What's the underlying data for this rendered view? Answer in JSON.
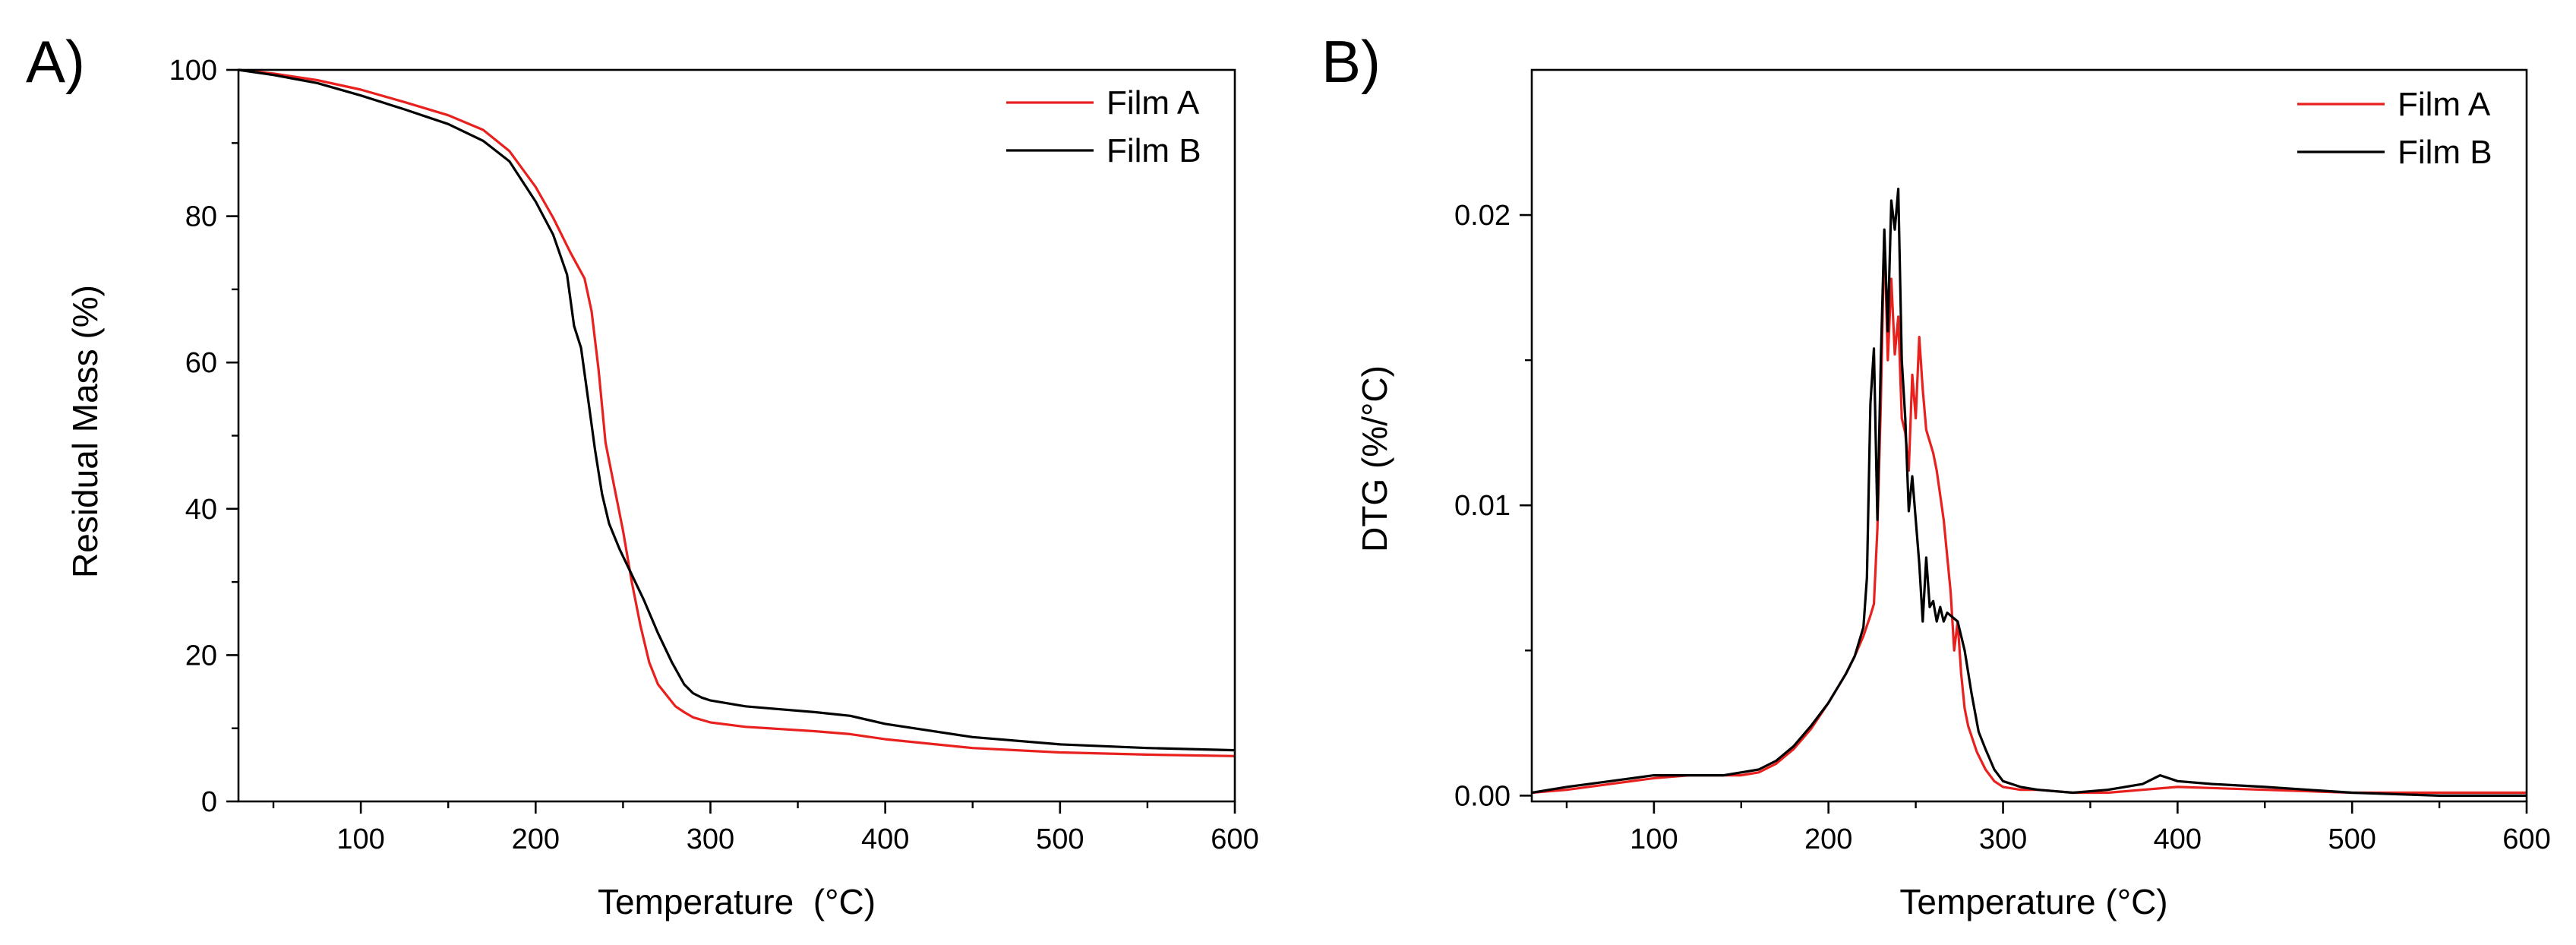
{
  "chart_data": [
    {
      "type": "line",
      "panel_label": "A)",
      "xlabel": "Temperature  (°C)",
      "ylabel": "Residual Mass (%)",
      "xlim": [
        30,
        600
      ],
      "ylim": [
        0,
        100
      ],
      "xticks": [
        100,
        200,
        300,
        400,
        500,
        600
      ],
      "xtick_labels": [
        "100",
        "200",
        "300",
        "400",
        "500",
        "600"
      ],
      "yticks": [
        0,
        20,
        40,
        60,
        80,
        100
      ],
      "ytick_labels": [
        "0",
        "20",
        "40",
        "60",
        "80",
        "100"
      ],
      "legend_position": "top-right",
      "series": [
        {
          "name": "Film A",
          "color": "#e8201e",
          "x": [
            30,
            50,
            75,
            100,
            125,
            150,
            170,
            185,
            200,
            210,
            220,
            228,
            232,
            236,
            240,
            245,
            250,
            255,
            260,
            265,
            270,
            275,
            280,
            285,
            290,
            300,
            320,
            340,
            360,
            380,
            400,
            450,
            500,
            550,
            600
          ],
          "y": [
            100,
            99.5,
            98.6,
            97.3,
            95.6,
            93.8,
            91.8,
            88.9,
            84.0,
            79.8,
            75.0,
            71.5,
            67.0,
            59.0,
            49.0,
            43.0,
            37.0,
            30.0,
            24.0,
            19.0,
            16.0,
            14.5,
            13.0,
            12.2,
            11.5,
            10.8,
            10.2,
            9.9,
            9.6,
            9.2,
            8.5,
            7.3,
            6.7,
            6.4,
            6.2
          ]
        },
        {
          "name": "Film B",
          "color": "#000000",
          "x": [
            30,
            50,
            75,
            100,
            125,
            150,
            170,
            185,
            200,
            210,
            218,
            222,
            226,
            230,
            234,
            238,
            242,
            248,
            255,
            262,
            270,
            278,
            285,
            290,
            295,
            300,
            320,
            340,
            360,
            380,
            400,
            450,
            500,
            550,
            600
          ],
          "y": [
            100,
            99.3,
            98.2,
            96.5,
            94.6,
            92.6,
            90.3,
            87.5,
            82.0,
            77.5,
            72.0,
            65.0,
            62.0,
            55.0,
            48.0,
            42.0,
            38.0,
            34.5,
            31.0,
            27.5,
            23.0,
            19.0,
            16.0,
            14.8,
            14.2,
            13.8,
            13.0,
            12.6,
            12.2,
            11.7,
            10.6,
            8.8,
            7.8,
            7.3,
            7.0
          ]
        }
      ]
    },
    {
      "type": "line",
      "panel_label": "B)",
      "xlabel": "Temperature (°C)",
      "ylabel": "DTG (%/°C)",
      "xlim": [
        30,
        600
      ],
      "ylim": [
        -0.0002,
        0.025
      ],
      "xticks": [
        100,
        200,
        300,
        400,
        500,
        600
      ],
      "xtick_labels": [
        "100",
        "200",
        "300",
        "400",
        "500",
        "600"
      ],
      "yticks": [
        0,
        0.01,
        0.02
      ],
      "ytick_labels": [
        "0.00",
        "0.01",
        "0.02"
      ],
      "legend_position": "top-right",
      "series": [
        {
          "name": "Film A",
          "color": "#e8201e",
          "x": [
            30,
            50,
            75,
            100,
            120,
            140,
            150,
            160,
            170,
            180,
            190,
            200,
            210,
            215,
            220,
            224,
            226,
            228,
            230,
            232,
            234,
            236,
            238,
            240,
            242,
            244,
            246,
            248,
            250,
            252,
            254,
            256,
            258,
            260,
            262,
            266,
            270,
            272,
            274,
            276,
            278,
            280,
            285,
            290,
            295,
            300,
            310,
            320,
            340,
            360,
            380,
            400,
            450,
            500,
            550,
            600
          ],
          "y": [
            0.0001,
            0.0002,
            0.0004,
            0.0006,
            0.0007,
            0.0007,
            0.0007,
            0.0008,
            0.0011,
            0.0016,
            0.0023,
            0.0032,
            0.0042,
            0.0048,
            0.0055,
            0.0062,
            0.0066,
            0.0092,
            0.0135,
            0.0194,
            0.015,
            0.0178,
            0.0152,
            0.0165,
            0.013,
            0.0125,
            0.0112,
            0.0145,
            0.013,
            0.0158,
            0.014,
            0.0126,
            0.0122,
            0.0118,
            0.0112,
            0.0095,
            0.007,
            0.005,
            0.006,
            0.0042,
            0.003,
            0.0024,
            0.0015,
            0.0009,
            0.0005,
            0.0003,
            0.0002,
            0.0002,
            0.0001,
            0.0001,
            0.0002,
            0.0003,
            0.0002,
            0.0001,
            0.0001,
            0.0001
          ]
        },
        {
          "name": "Film B",
          "color": "#000000",
          "x": [
            30,
            50,
            75,
            100,
            120,
            140,
            150,
            160,
            170,
            180,
            190,
            200,
            210,
            215,
            220,
            222,
            224,
            226,
            228,
            230,
            232,
            234,
            236,
            238,
            240,
            242,
            244,
            246,
            248,
            250,
            252,
            254,
            256,
            258,
            260,
            262,
            264,
            266,
            268,
            270,
            274,
            278,
            282,
            286,
            290,
            295,
            300,
            310,
            320,
            340,
            360,
            380,
            390,
            400,
            420,
            450,
            500,
            550,
            600
          ],
          "y": [
            0.0001,
            0.0003,
            0.0005,
            0.0007,
            0.0007,
            0.0007,
            0.0008,
            0.0009,
            0.0012,
            0.0017,
            0.0024,
            0.0032,
            0.0042,
            0.0048,
            0.0058,
            0.0075,
            0.0135,
            0.0154,
            0.0095,
            0.015,
            0.0195,
            0.016,
            0.0205,
            0.0195,
            0.0209,
            0.015,
            0.013,
            0.0098,
            0.011,
            0.0095,
            0.008,
            0.006,
            0.0082,
            0.0065,
            0.0067,
            0.006,
            0.0065,
            0.006,
            0.0063,
            0.0062,
            0.006,
            0.005,
            0.0035,
            0.0022,
            0.0016,
            0.0009,
            0.0005,
            0.0003,
            0.0002,
            0.0001,
            0.0002,
            0.0004,
            0.0007,
            0.0005,
            0.0004,
            0.0003,
            0.0001,
            0.0,
            0.0
          ]
        }
      ]
    }
  ]
}
